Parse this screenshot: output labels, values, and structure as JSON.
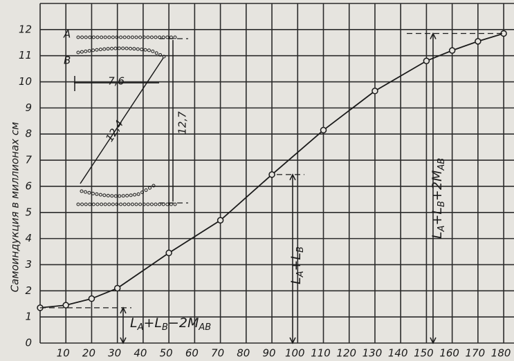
{
  "chart_data": {
    "type": "line",
    "y_label": "Самоиндукция в миллионах см",
    "x": [
      0,
      10,
      20,
      30,
      50,
      70,
      90,
      110,
      130,
      150,
      160,
      170,
      180
    ],
    "series": [
      {
        "name": "L",
        "color": "#1a1a1a",
        "values": [
          1.35,
          1.45,
          1.7,
          2.1,
          3.45,
          4.7,
          6.45,
          8.15,
          9.65,
          10.8,
          11.2,
          11.55,
          11.85
        ]
      }
    ],
    "xlim": [
      0,
      184
    ],
    "ylim": [
      0,
      13
    ],
    "xticks": [
      10,
      20,
      30,
      40,
      50,
      60,
      70,
      80,
      90,
      100,
      110,
      120,
      130,
      140,
      150,
      160,
      170,
      180
    ],
    "yticks": [
      0,
      1,
      2,
      3,
      4,
      5,
      6,
      7,
      8,
      9,
      10,
      11,
      12
    ],
    "grid": true,
    "annotations": [
      {
        "segments": [
          "L",
          "A",
          "+L",
          "B",
          "−2M",
          "AB"
        ]
      },
      {
        "segments": [
          "L",
          "A",
          "+L",
          "B"
        ]
      },
      {
        "segments": [
          "L",
          "A",
          "+L",
          "B",
          "+2M",
          "AB"
        ]
      }
    ],
    "inset": {
      "coil_a": "A",
      "coil_b": "B",
      "width": "7,6",
      "diagonal": "12,4",
      "height": "12,7"
    }
  }
}
